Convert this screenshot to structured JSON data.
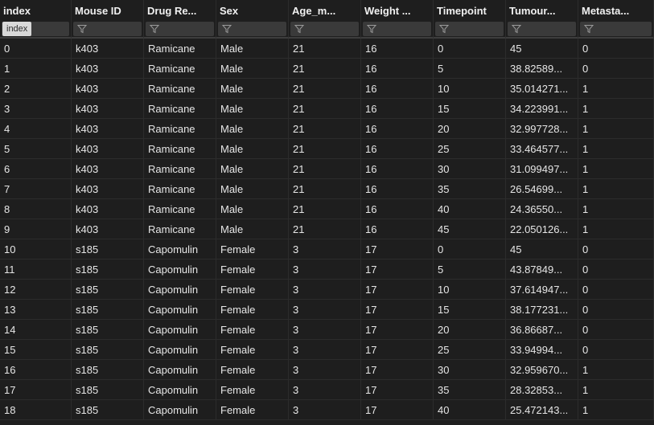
{
  "columns": [
    "index",
    "Mouse ID",
    "Drug Re...",
    "Sex",
    "Age_m...",
    "Weight ...",
    "Timepoint",
    "Tumour...",
    "Metasta..."
  ],
  "filter": {
    "index_label": "index"
  },
  "colors": {
    "background": "#1e1e1e",
    "filter_box": "#3a3a3a",
    "index_badge": "#d8d8d8",
    "text": "#e6e6e6"
  },
  "icons": {
    "filter": "funnel-filter-icon"
  },
  "rows": [
    [
      "0",
      "k403",
      "Ramicane",
      "Male",
      "21",
      "16",
      "0",
      "45",
      "0"
    ],
    [
      "1",
      "k403",
      "Ramicane",
      "Male",
      "21",
      "16",
      "5",
      "38.82589...",
      "0"
    ],
    [
      "2",
      "k403",
      "Ramicane",
      "Male",
      "21",
      "16",
      "10",
      "35.014271...",
      "1"
    ],
    [
      "3",
      "k403",
      "Ramicane",
      "Male",
      "21",
      "16",
      "15",
      "34.223991...",
      "1"
    ],
    [
      "4",
      "k403",
      "Ramicane",
      "Male",
      "21",
      "16",
      "20",
      "32.997728...",
      "1"
    ],
    [
      "5",
      "k403",
      "Ramicane",
      "Male",
      "21",
      "16",
      "25",
      "33.464577...",
      "1"
    ],
    [
      "6",
      "k403",
      "Ramicane",
      "Male",
      "21",
      "16",
      "30",
      "31.099497...",
      "1"
    ],
    [
      "7",
      "k403",
      "Ramicane",
      "Male",
      "21",
      "16",
      "35",
      "26.54699...",
      "1"
    ],
    [
      "8",
      "k403",
      "Ramicane",
      "Male",
      "21",
      "16",
      "40",
      "24.36550...",
      "1"
    ],
    [
      "9",
      "k403",
      "Ramicane",
      "Male",
      "21",
      "16",
      "45",
      "22.050126...",
      "1"
    ],
    [
      "10",
      "s185",
      "Capomulin",
      "Female",
      "3",
      "17",
      "0",
      "45",
      "0"
    ],
    [
      "11",
      "s185",
      "Capomulin",
      "Female",
      "3",
      "17",
      "5",
      "43.87849...",
      "0"
    ],
    [
      "12",
      "s185",
      "Capomulin",
      "Female",
      "3",
      "17",
      "10",
      "37.614947...",
      "0"
    ],
    [
      "13",
      "s185",
      "Capomulin",
      "Female",
      "3",
      "17",
      "15",
      "38.177231...",
      "0"
    ],
    [
      "14",
      "s185",
      "Capomulin",
      "Female",
      "3",
      "17",
      "20",
      "36.86687...",
      "0"
    ],
    [
      "15",
      "s185",
      "Capomulin",
      "Female",
      "3",
      "17",
      "25",
      "33.94994...",
      "0"
    ],
    [
      "16",
      "s185",
      "Capomulin",
      "Female",
      "3",
      "17",
      "30",
      "32.959670...",
      "1"
    ],
    [
      "17",
      "s185",
      "Capomulin",
      "Female",
      "3",
      "17",
      "35",
      "28.32853...",
      "1"
    ],
    [
      "18",
      "s185",
      "Capomulin",
      "Female",
      "3",
      "17",
      "40",
      "25.472143...",
      "1"
    ]
  ]
}
